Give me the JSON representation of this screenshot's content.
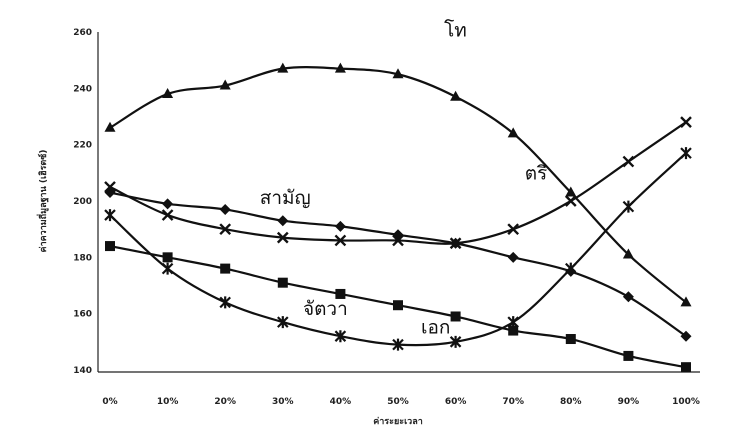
{
  "chart_data": {
    "type": "line",
    "xlabel": "ค่าระยะเวลา",
    "ylabel": "ค่าความถี่มูลฐาน (เฮิรตซ์)",
    "x": [
      "0%",
      "10%",
      "20%",
      "30%",
      "40%",
      "50%",
      "60%",
      "70%",
      "80%",
      "90%",
      "100%"
    ],
    "y_ticks": [
      "140",
      "160",
      "180",
      "200",
      "220",
      "240",
      "260"
    ],
    "ylim": [
      140,
      260
    ],
    "grid": false,
    "series": [
      {
        "name": "โท",
        "marker": "triangle",
        "values": [
          226,
          238,
          241,
          247,
          247,
          245,
          237,
          224,
          203,
          181,
          164
        ]
      },
      {
        "name": "สามัญ",
        "marker": "diamond",
        "values": [
          203,
          199,
          197,
          193,
          191,
          188,
          185,
          180,
          175,
          166,
          152
        ]
      },
      {
        "name": "ตรี",
        "marker": "x",
        "values": [
          205,
          195,
          190,
          187,
          186,
          186,
          185,
          190,
          200,
          214,
          228
        ]
      },
      {
        "name": "เอก",
        "marker": "square",
        "values": [
          184,
          180,
          176,
          171,
          167,
          163,
          159,
          154,
          151,
          145,
          141
        ]
      },
      {
        "name": "จัตวา",
        "marker": "asterisk",
        "values": [
          195,
          176,
          164,
          157,
          152,
          149,
          150,
          157,
          176,
          198,
          217
        ]
      }
    ],
    "labels": [
      {
        "series": 0,
        "text": "โท"
      },
      {
        "series": 1,
        "text": "สามัญ"
      },
      {
        "series": 2,
        "text": "ตรี"
      },
      {
        "series": 3,
        "text": "เอก"
      },
      {
        "series": 4,
        "text": "จัตวา"
      }
    ]
  }
}
